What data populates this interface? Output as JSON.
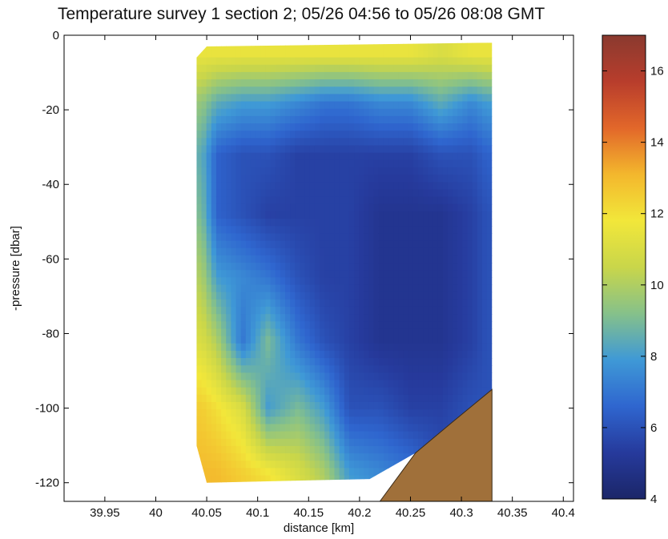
{
  "chart_data": {
    "type": "heatmap",
    "title": "Temperature survey 1 section 2; 05/26 04:56 to 05/26 08:08 GMT",
    "xlabel": "distance [km]",
    "ylabel": "-pressure [dbar]",
    "xlim": [
      39.91,
      40.41
    ],
    "ylim": [
      -125,
      0
    ],
    "x_ticks": [
      "39.95",
      "40",
      "40.05",
      "40.1",
      "40.15",
      "40.2",
      "40.25",
      "40.3",
      "40.35",
      "40.4"
    ],
    "y_ticks": [
      "0",
      "-20",
      "-40",
      "-60",
      "-80",
      "-100",
      "-120"
    ],
    "colorbar": {
      "range": [
        4,
        17
      ],
      "ticks": [
        "4",
        "6",
        "8",
        "10",
        "12",
        "14",
        "16"
      ],
      "colors": [
        "#1b2668",
        "#263a9c",
        "#2f66cf",
        "#3f99d6",
        "#86c18a",
        "#c9d64a",
        "#f2e73a",
        "#f3b72d",
        "#e2672a",
        "#b83d2c",
        "#8a3a2f"
      ]
    },
    "data_extent": {
      "x": [
        40.04,
        40.33
      ],
      "pressure": [
        -2,
        -120
      ]
    },
    "seafloor": {
      "label": "bathymetry",
      "x": [
        40.22,
        40.33
      ],
      "depth_at_x_start": -125,
      "depth_at_x_end": -95
    },
    "profiles": [
      {
        "x": 40.045,
        "temps": [
          11.5,
          9.5,
          8.5,
          9,
          10,
          11,
          12.5,
          13
        ]
      },
      {
        "x": 40.06,
        "temps": [
          11.5,
          8.5,
          6.5,
          6.5,
          8,
          10,
          12,
          13
        ]
      },
      {
        "x": 40.085,
        "temps": [
          11.5,
          8,
          6,
          6,
          7.5,
          7,
          11,
          12.5
        ]
      },
      {
        "x": 40.11,
        "temps": [
          11.5,
          8,
          6,
          5.5,
          7,
          9,
          8,
          12
        ]
      },
      {
        "x": 40.14,
        "temps": [
          11.5,
          7.5,
          5.5,
          5.5,
          6,
          7,
          9,
          11
        ]
      },
      {
        "x": 40.165,
        "temps": [
          11.5,
          7,
          5.5,
          5.5,
          5.5,
          6,
          8,
          10
        ]
      },
      {
        "x": 40.19,
        "temps": [
          11.5,
          7,
          5.5,
          5.5,
          5.5,
          5.5,
          6,
          8
        ]
      },
      {
        "x": 40.22,
        "temps": [
          11.5,
          7.5,
          5.5,
          5,
          5,
          5,
          6,
          7.5
        ]
      },
      {
        "x": 40.25,
        "temps": [
          11.5,
          7.5,
          5.5,
          5,
          5,
          5,
          5.5,
          7
        ]
      },
      {
        "x": 40.28,
        "temps": [
          11,
          8.5,
          6,
          5,
          5,
          5,
          5.5,
          6
        ]
      },
      {
        "x": 40.31,
        "temps": [
          11.5,
          7.5,
          6,
          5.5,
          5.5,
          5.5,
          6,
          6
        ]
      },
      {
        "x": 40.325,
        "temps": [
          11.5,
          8,
          6.5,
          6,
          6,
          6,
          6,
          6
        ]
      }
    ],
    "profile_depths": [
      -5,
      -18,
      -32,
      -48,
      -65,
      -82,
      -100,
      -118
    ],
    "grid": false
  }
}
